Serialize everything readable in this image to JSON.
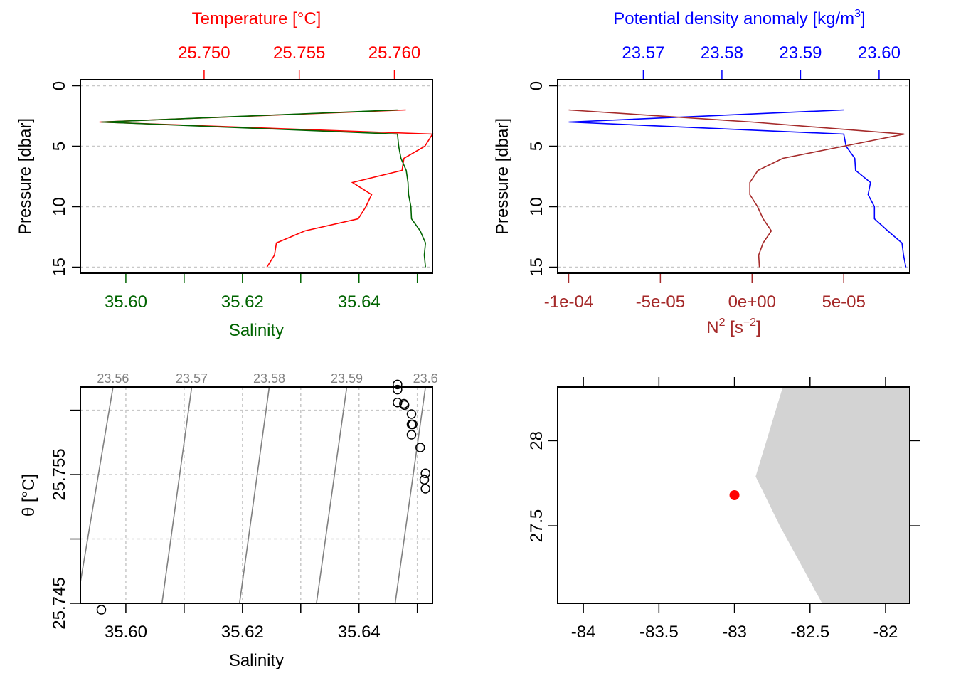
{
  "chart_data": [
    {
      "type": "line",
      "panel": "temperature-salinity-profile",
      "top_axis_label": "Temperature [°C]",
      "bottom_axis_label": "Salinity",
      "ylabel": "Pressure [dbar]",
      "top_ticks": [
        "25.750",
        "25.755",
        "25.760"
      ],
      "top_tick_values": [
        25.75,
        25.755,
        25.76
      ],
      "top_lim": [
        25.7435,
        25.762
      ],
      "bottom_ticks": [
        "35.60",
        "35.62",
        "35.64"
      ],
      "bottom_tick_values": [
        35.6,
        35.61,
        35.62,
        35.63,
        35.64,
        35.65
      ],
      "bottom_labeled_values": [
        35.6,
        35.62,
        35.64
      ],
      "bottom_lim": [
        35.5922,
        35.6526
      ],
      "y_ticks": [
        "0",
        "5",
        "10",
        "15"
      ],
      "y_tick_values": [
        0,
        5,
        10,
        15
      ],
      "ylim": [
        15.5,
        -0.5
      ],
      "grid": true,
      "series": [
        {
          "name": "",
          "axis": "top",
          "color": "#ff0000",
          "pressure": [
            2,
            3,
            4,
            5,
            6,
            7,
            8,
            9,
            10,
            11,
            12,
            13,
            14,
            15
          ],
          "values": [
            25.7606,
            25.7445,
            25.762,
            25.7616,
            25.7605,
            25.7604,
            25.7578,
            25.7588,
            25.7585,
            25.7581,
            25.7553,
            25.7538,
            25.7537,
            25.7533
          ]
        },
        {
          "name": "",
          "axis": "bottom",
          "color": "#006400",
          "pressure": [
            2,
            3,
            4,
            5,
            6,
            7,
            8,
            9,
            10,
            11,
            12,
            13,
            14,
            15
          ],
          "values": [
            35.6466,
            35.5958,
            35.6466,
            35.6468,
            35.6472,
            35.6481,
            35.6484,
            35.6485,
            35.6489,
            35.649,
            35.6505,
            35.6514,
            35.6512,
            35.6514
          ]
        }
      ]
    },
    {
      "type": "line",
      "panel": "density-n2-profile",
      "top_axis_label": "Potential density anomaly [kg/m",
      "top_axis_label_sup": "3",
      "top_axis_label_end": "]",
      "bottom_axis_label": "N",
      "bottom_axis_label_sup": "2",
      "bottom_axis_label_mid": " [s",
      "bottom_axis_label_sup2": "−2",
      "bottom_axis_label_end": "]",
      "ylabel": "Pressure [dbar]",
      "top_ticks": [
        "23.57",
        "23.58",
        "23.59",
        "23.60"
      ],
      "top_tick_values": [
        23.57,
        23.58,
        23.59,
        23.6
      ],
      "top_lim": [
        23.5591,
        23.6039
      ],
      "bottom_ticks": [
        "-1e-04",
        "-5e-05",
        "0e+00",
        "5e-05"
      ],
      "bottom_tick_values": [
        -0.0001,
        -5e-05,
        0,
        5e-05
      ],
      "bottom_lim": [
        -0.000106,
        8.6e-05
      ],
      "y_ticks": [
        "0",
        "5",
        "10",
        "15"
      ],
      "y_tick_values": [
        0,
        5,
        10,
        15
      ],
      "ylim": [
        15.5,
        -0.5
      ],
      "grid": true,
      "series": [
        {
          "name": "",
          "axis": "top",
          "color": "#0000ff",
          "pressure": [
            2,
            3,
            4,
            5,
            6,
            7,
            8,
            9,
            10,
            11,
            12,
            13,
            14,
            15
          ],
          "values": [
            23.5955,
            23.5605,
            23.5955,
            23.5958,
            23.5969,
            23.597,
            23.5989,
            23.5986,
            23.5994,
            23.5994,
            23.6011,
            23.6029,
            23.6031,
            23.6034
          ]
        },
        {
          "name": "",
          "axis": "bottom",
          "color": "#a52a2a",
          "pressure": [
            2,
            3,
            4,
            5,
            6,
            7,
            8,
            9,
            10,
            11,
            12,
            13,
            14,
            15
          ],
          "values": [
            -0.0001,
            0.0,
            8.3e-05,
            5e-05,
            1.68e-05,
            3.2e-06,
            -1.2e-06,
            -1.2e-06,
            3e-06,
            6e-06,
            1.05e-05,
            6e-06,
            3.6e-06,
            4e-06
          ]
        }
      ]
    },
    {
      "type": "scatter",
      "panel": "ts-diagram",
      "xlabel": "Salinity",
      "ylabel": "θ [°C]",
      "x_ticks": [
        "35.60",
        "35.62",
        "35.64"
      ],
      "x_tick_values": [
        35.6,
        35.61,
        35.62,
        35.63,
        35.64,
        35.65
      ],
      "x_labeled_values": [
        35.6,
        35.62,
        35.64
      ],
      "xlim": [
        35.5922,
        35.6526
      ],
      "y_ticks": [
        "25.745",
        "25.755"
      ],
      "y_tick_values": [
        25.745,
        25.75,
        25.755,
        25.76
      ],
      "y_labeled_values": [
        25.745,
        25.755
      ],
      "ylim": [
        25.745,
        25.7618
      ],
      "grid": true,
      "isopycnals": [
        {
          "label": "23.56",
          "x_top": 35.5978,
          "x_bottom": 35.5916
        },
        {
          "label": "23.57",
          "x_top": 35.6113,
          "x_bottom": 35.6062
        },
        {
          "label": "23.58",
          "x_top": 35.6246,
          "x_bottom": 35.6195
        },
        {
          "label": "23.59",
          "x_top": 35.6379,
          "x_bottom": 35.6327
        },
        {
          "label": "23.6",
          "x_top": 35.6514,
          "x_bottom": 35.6462
        }
      ],
      "points": [
        {
          "x": 35.5958,
          "y": 25.7445
        },
        {
          "x": 35.6466,
          "y": 25.7606
        },
        {
          "x": 35.6466,
          "y": 25.7616
        },
        {
          "x": 35.6466,
          "y": 25.762
        },
        {
          "x": 35.6477,
          "y": 25.7605
        },
        {
          "x": 35.6478,
          "y": 25.7604
        },
        {
          "x": 35.649,
          "y": 25.7597
        },
        {
          "x": 35.649,
          "y": 25.7589
        },
        {
          "x": 35.6492,
          "y": 25.7589
        },
        {
          "x": 35.649,
          "y": 25.7581
        },
        {
          "x": 35.6505,
          "y": 25.7571
        },
        {
          "x": 35.6514,
          "y": 25.7551
        },
        {
          "x": 35.6512,
          "y": 25.7546
        },
        {
          "x": 35.6514,
          "y": 25.7539
        }
      ]
    },
    {
      "type": "scatter",
      "panel": "station-map",
      "x_ticks": [
        "-84",
        "-83.5",
        "-83",
        "-82.5",
        "-82"
      ],
      "x_tick_values": [
        -84,
        -83.5,
        -83,
        -82.5,
        -82
      ],
      "xlim": [
        -84.17,
        -81.84
      ],
      "y_ticks": [
        "27.5",
        "28"
      ],
      "y_tick_values": [
        27.5,
        28
      ],
      "ylim": [
        27.045,
        28.315
      ],
      "land_polygon": [
        [
          -82.68,
          28.315
        ],
        [
          -82.86,
          27.79
        ],
        [
          -82.7,
          27.5
        ],
        [
          -82.42,
          27.045
        ],
        [
          -81.84,
          27.045
        ],
        [
          -81.84,
          28.315
        ]
      ],
      "land_color": "#d3d3d3",
      "station": {
        "lon": -83.0,
        "lat": 27.68,
        "color": "#ff0000"
      }
    }
  ]
}
